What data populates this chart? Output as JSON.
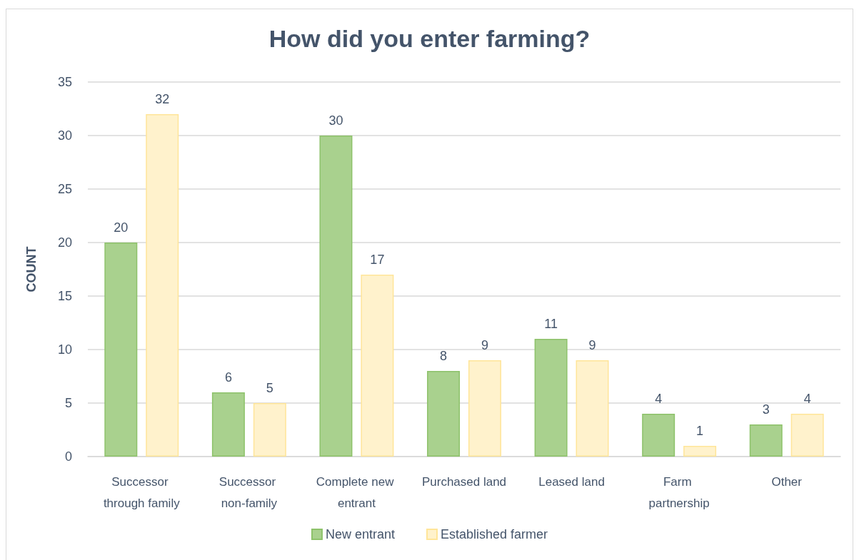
{
  "chart_data": {
    "type": "bar",
    "title": "How did you enter farming?",
    "ylabel": "COUNT",
    "categories": [
      "Successor through family",
      "Successor non-family",
      "Complete new entrant",
      "Purchased land",
      "Leased land",
      "Farm partnership",
      "Other"
    ],
    "series": [
      {
        "name": "New entrant",
        "color": "#a9d18e",
        "values": [
          20,
          6,
          30,
          8,
          11,
          4,
          3
        ]
      },
      {
        "name": "Established farmer",
        "color": "#fff2cc",
        "values": [
          32,
          5,
          17,
          9,
          9,
          1,
          4
        ]
      }
    ],
    "ylim": [
      0,
      35
    ],
    "yticks": [
      0,
      5,
      10,
      15,
      20,
      25,
      30,
      35
    ],
    "grid": "y",
    "legend": "bottom",
    "data_labels": true
  }
}
